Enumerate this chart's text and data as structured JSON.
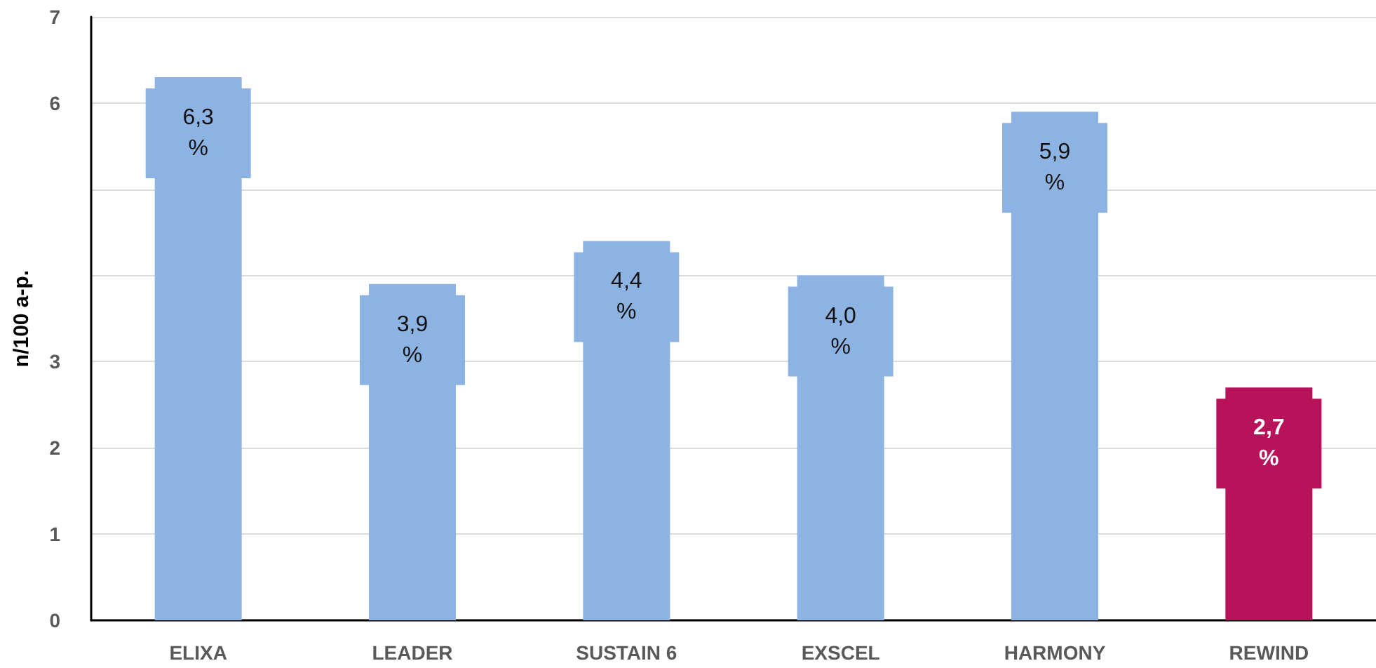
{
  "chart_data": {
    "type": "bar",
    "ylabel": "n/100 a-p.",
    "categories": [
      "ELIXA",
      "LEADER",
      "SUSTAIN 6",
      "EXSCEL",
      "HARMONY",
      "REWIND"
    ],
    "values": [
      6.3,
      3.9,
      4.4,
      4.0,
      5.9,
      2.7
    ],
    "colors": [
      "#8db3e2",
      "#8db3e2",
      "#8db3e2",
      "#8db3e2",
      "#8db3e2",
      "#b8135a"
    ],
    "value_labels": [
      "6,3\n%",
      "3,9\n%",
      "4,4\n%",
      "4,0\n%",
      "5,9\n%",
      "2,7\n%"
    ],
    "ylim": [
      0,
      7
    ],
    "yticks": [
      0,
      1,
      2,
      3,
      {
        "value": 4,
        "label": null
      },
      {
        "value": 5,
        "label": null
      },
      6,
      7
    ],
    "grid": "y"
  }
}
